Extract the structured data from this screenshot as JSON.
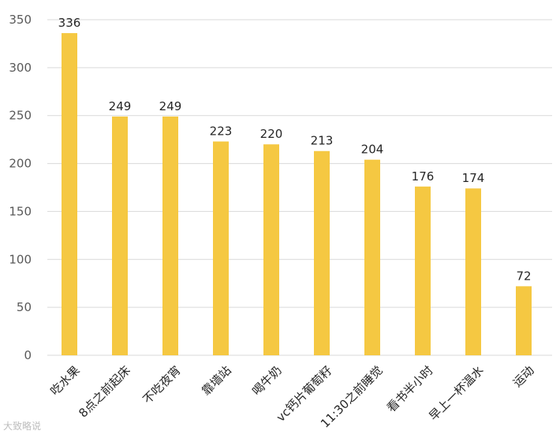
{
  "chart_data": {
    "type": "bar",
    "categories": [
      "吃水果",
      "8点之前起床",
      "不吃夜宵",
      "靠墙站",
      "喝牛奶",
      "vc钙片葡萄籽",
      "11:30之前睡觉",
      "看书半小时",
      "早上一杯温水",
      "运动"
    ],
    "values": [
      336,
      249,
      249,
      223,
      220,
      213,
      204,
      176,
      174,
      72
    ],
    "ylim": [
      0,
      350
    ],
    "yticks": [
      0,
      50,
      100,
      150,
      200,
      250,
      300,
      350
    ],
    "grid": true,
    "bar_color": "#F5C842",
    "title": "",
    "xlabel": "",
    "ylabel": ""
  },
  "watermark": "大致略说"
}
